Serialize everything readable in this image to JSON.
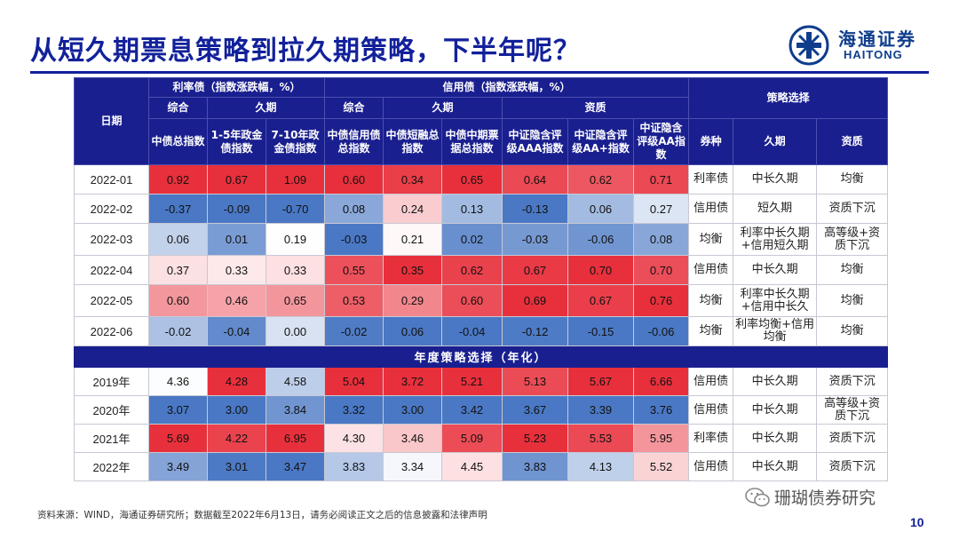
{
  "title": "从短久期票息策略到拉久期策略，下半年呢？",
  "logo": {
    "cn": "海通证券",
    "en": "HAITONG",
    "brand_color": "#0f3d8c"
  },
  "table": {
    "header": {
      "date": "日期",
      "rate_group": "利率债（指数涨跌幅，%）",
      "credit_group": "信用债（指数涨跌幅，%）",
      "strategy": "策略选择",
      "rate_composite": "综合",
      "rate_duration": "久期",
      "credit_composite": "综合",
      "credit_duration": "久期",
      "credit_quality": "资质",
      "cols": [
        "中债总指数",
        "1-5年政金债指数",
        "7-10年政金债指数",
        "中债信用债总指数",
        "中债短融总指数",
        "中债中期票据总指数",
        "中证隐含评级AAA指数",
        "中证隐含评级AA+指数",
        "中证隐含评级AA指数"
      ],
      "strategy_cols": [
        "券种",
        "久期",
        "资质"
      ]
    },
    "monthly": [
      {
        "date": "2022-01",
        "values": [
          "0.92",
          "0.67",
          "1.09",
          "0.60",
          "0.34",
          "0.65",
          "0.64",
          "0.62",
          "0.71"
        ],
        "type": "利率债",
        "duration": "中长久期",
        "quality": "均衡"
      },
      {
        "date": "2022-02",
        "values": [
          "-0.37",
          "-0.09",
          "-0.70",
          "0.08",
          "0.24",
          "0.13",
          "-0.13",
          "0.06",
          "0.27"
        ],
        "type": "信用债",
        "duration": "短久期",
        "quality": "资质下沉"
      },
      {
        "date": "2022-03",
        "values": [
          "0.06",
          "0.01",
          "0.19",
          "-0.03",
          "0.21",
          "0.02",
          "-0.03",
          "-0.06",
          "0.08"
        ],
        "type": "均衡",
        "duration": "利率中长久期+信用短久期",
        "quality": "高等级+资质下沉"
      },
      {
        "date": "2022-04",
        "values": [
          "0.37",
          "0.33",
          "0.33",
          "0.55",
          "0.35",
          "0.62",
          "0.67",
          "0.70",
          "0.70"
        ],
        "type": "信用债",
        "duration": "中长久期",
        "quality": "均衡"
      },
      {
        "date": "2022-05",
        "values": [
          "0.60",
          "0.46",
          "0.65",
          "0.53",
          "0.29",
          "0.60",
          "0.69",
          "0.67",
          "0.76"
        ],
        "type": "均衡",
        "duration": "利率中长久期+信用中长久",
        "quality": "均衡"
      },
      {
        "date": "2022-06",
        "values": [
          "-0.02",
          "-0.04",
          "0.00",
          "-0.02",
          "0.06",
          "-0.04",
          "-0.12",
          "-0.15",
          "-0.06"
        ],
        "type": "均衡",
        "duration": "利率均衡+信用均衡",
        "quality": "均衡"
      }
    ],
    "annual_title": "年度策略选择（年化）",
    "annual": [
      {
        "date": "2019年",
        "values": [
          "4.36",
          "4.28",
          "4.58",
          "5.04",
          "3.72",
          "5.21",
          "5.13",
          "5.67",
          "6.66"
        ],
        "type": "信用债",
        "duration": "中长久期",
        "quality": "资质下沉"
      },
      {
        "date": "2020年",
        "values": [
          "3.07",
          "3.00",
          "3.84",
          "3.32",
          "3.00",
          "3.42",
          "3.67",
          "3.39",
          "3.76"
        ],
        "type": "信用债",
        "duration": "中长久期",
        "quality": "高等级+资质下沉"
      },
      {
        "date": "2021年",
        "values": [
          "5.69",
          "4.22",
          "6.95",
          "4.30",
          "3.46",
          "5.09",
          "5.23",
          "5.53",
          "5.95"
        ],
        "type": "利率债",
        "duration": "中长久期",
        "quality": "资质下沉"
      },
      {
        "date": "2022年",
        "values": [
          "3.49",
          "3.01",
          "3.47",
          "3.83",
          "3.34",
          "4.45",
          "3.83",
          "4.13",
          "5.52"
        ],
        "type": "信用债",
        "duration": "中长久期",
        "quality": "资质下沉"
      }
    ],
    "colors": {
      "header_bg": "#1a1f8f",
      "strong_red": "#e8303c",
      "strong_blue": "#4a78c4",
      "title_blue": "#12219a"
    }
  },
  "source": "资料来源：WIND，海通证券研究所；数据截至2022年6月13日，请务必阅读正文之后的信息披露和法律声明",
  "watermark": "珊瑚债券研究",
  "page_number": "10"
}
